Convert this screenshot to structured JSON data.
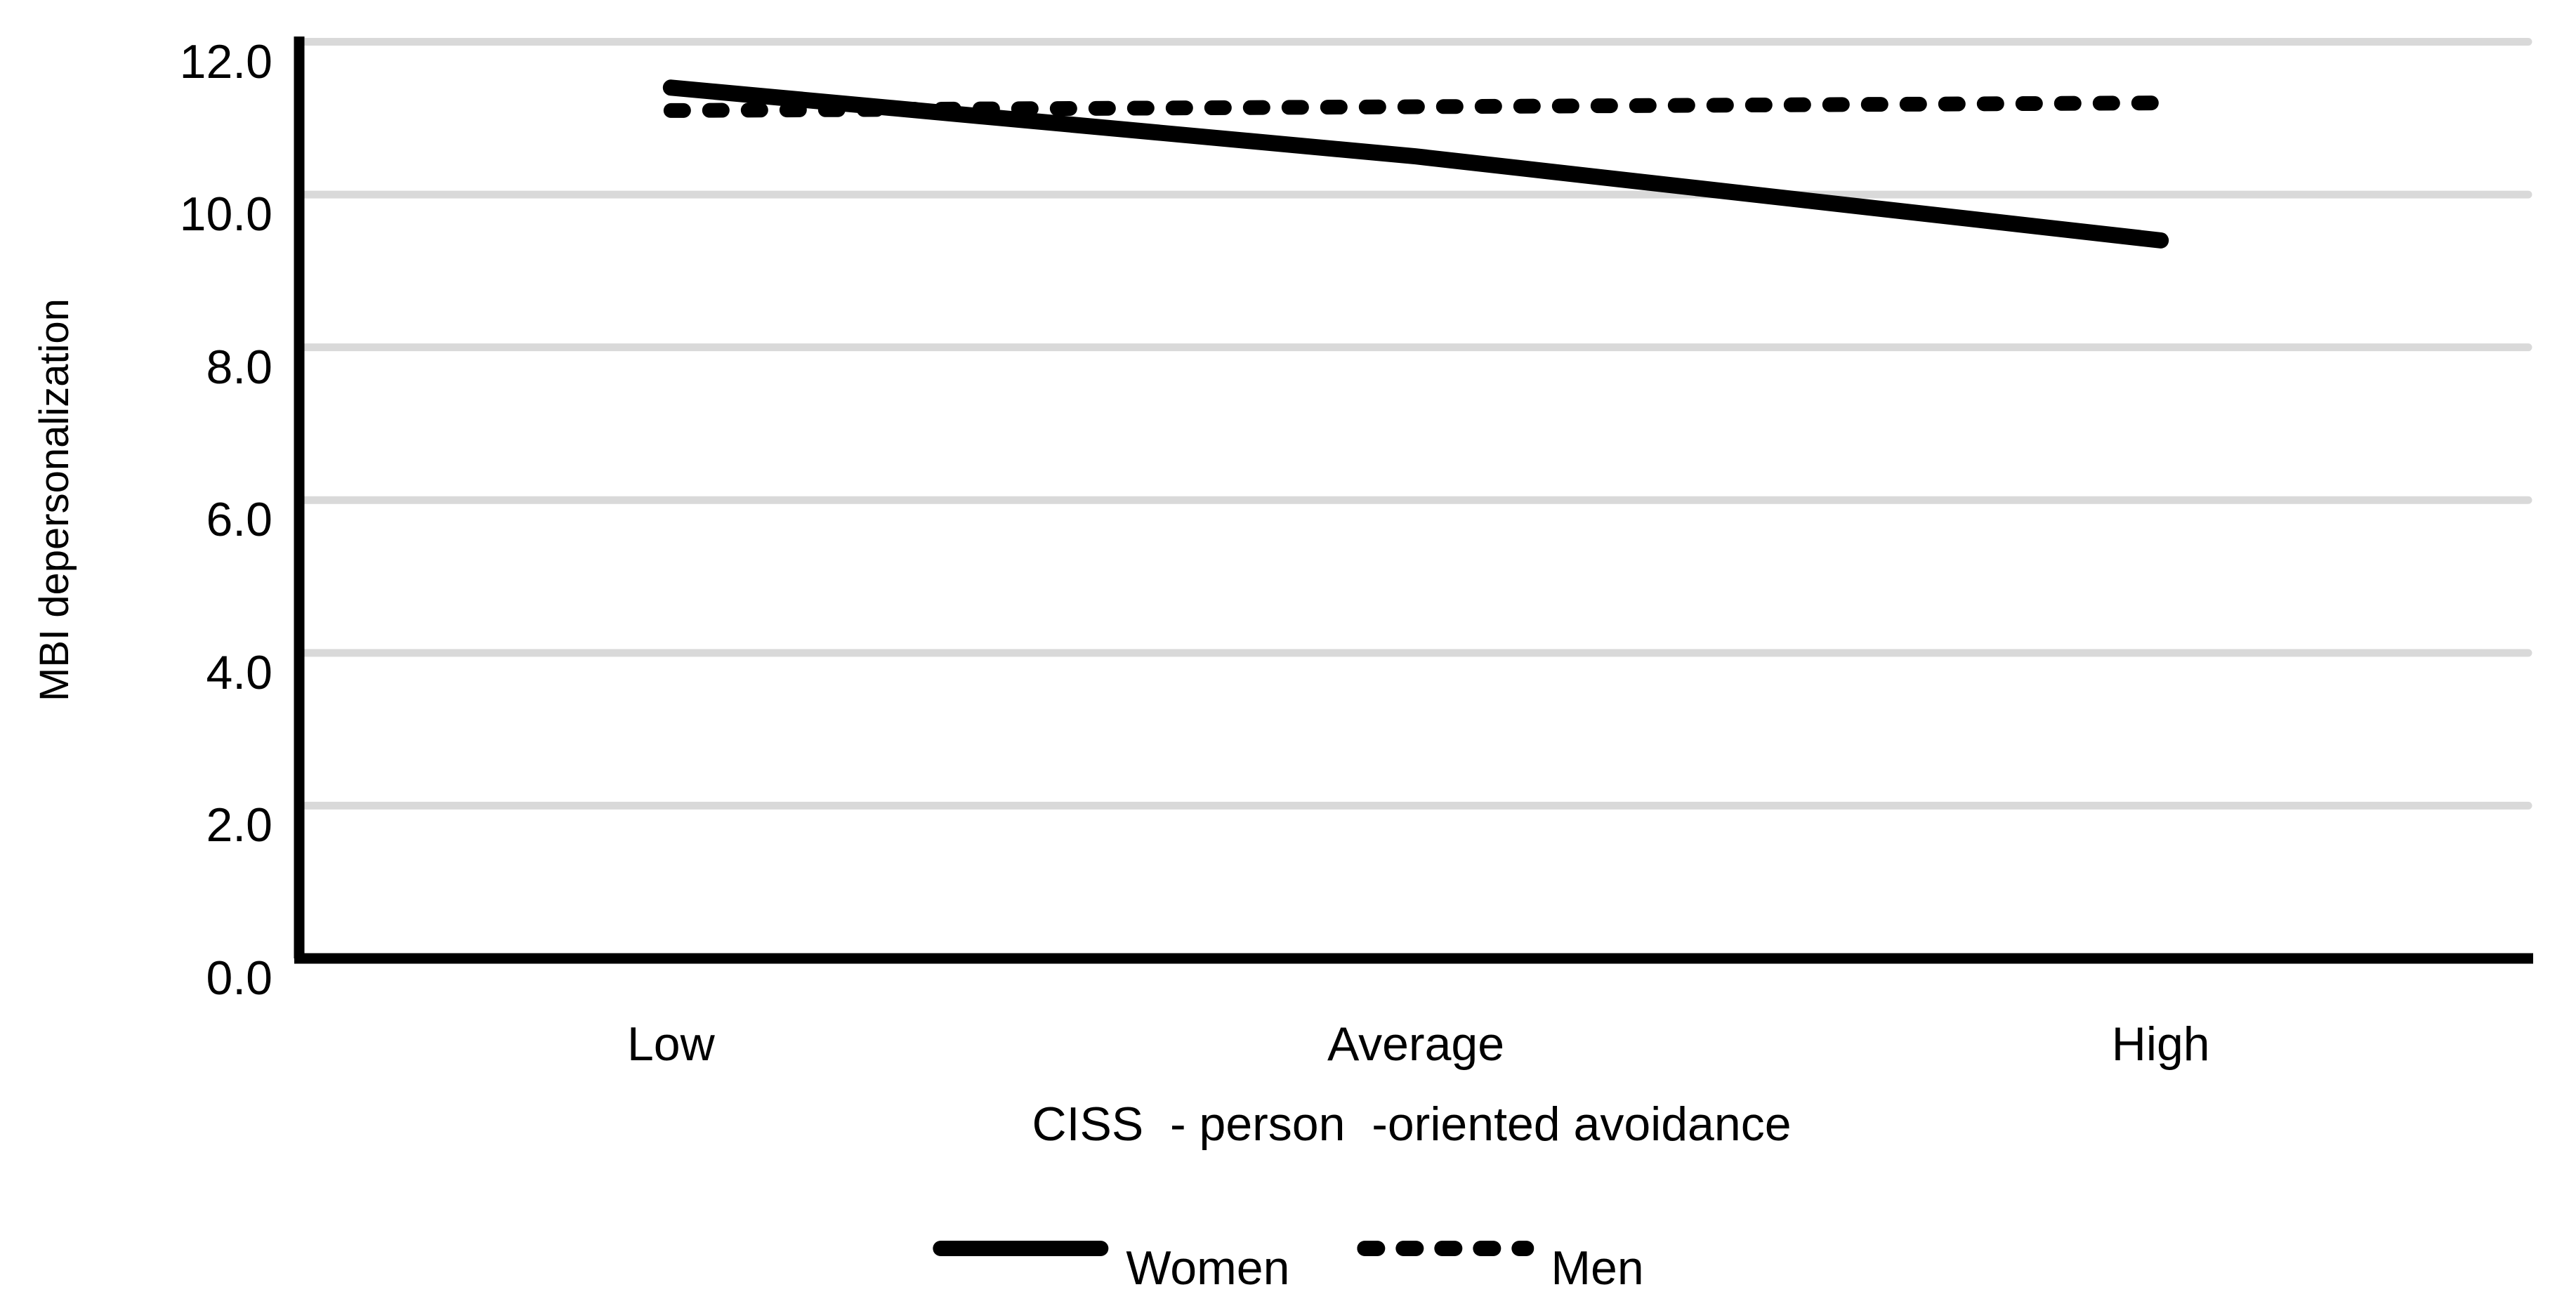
{
  "figure": {
    "background_color": "#ffffff",
    "text_color": "#000000",
    "gridline_color": "#d9d9d9",
    "series_color": "#000000",
    "y_axis": {
      "title": "MBI depersonalization",
      "tick_labels": [
        "0.0",
        "2.0",
        "4.0",
        "6.0",
        "8.0",
        "10.0",
        "12.0"
      ],
      "tick_values": [
        0,
        2,
        4,
        6,
        8,
        10,
        12
      ]
    },
    "x_axis": {
      "title_display": "CISS  - person  -oriented avoidance",
      "categories": [
        "Low",
        "Average",
        "High"
      ]
    },
    "legend": {
      "items": [
        {
          "label": "Women",
          "line_style": "solid"
        },
        {
          "label": "Men",
          "line_style": "dashed"
        }
      ]
    }
  },
  "chart_data": {
    "type": "line",
    "title": "",
    "categories": [
      "Low",
      "Average",
      "High"
    ],
    "series": [
      {
        "name": "Women",
        "line_style": "solid",
        "values": [
          11.4,
          10.5,
          9.4
        ]
      },
      {
        "name": "Men",
        "line_style": "dashed",
        "values": [
          11.1,
          11.15,
          11.2
        ]
      }
    ],
    "xlabel": "CISS - person -oriented avoidance",
    "ylabel": "MBI depersonalization",
    "ylim": [
      0,
      12
    ],
    "ytick_step": 2,
    "grid": true,
    "grid_axis": "y",
    "legend_position": "bottom-center"
  }
}
